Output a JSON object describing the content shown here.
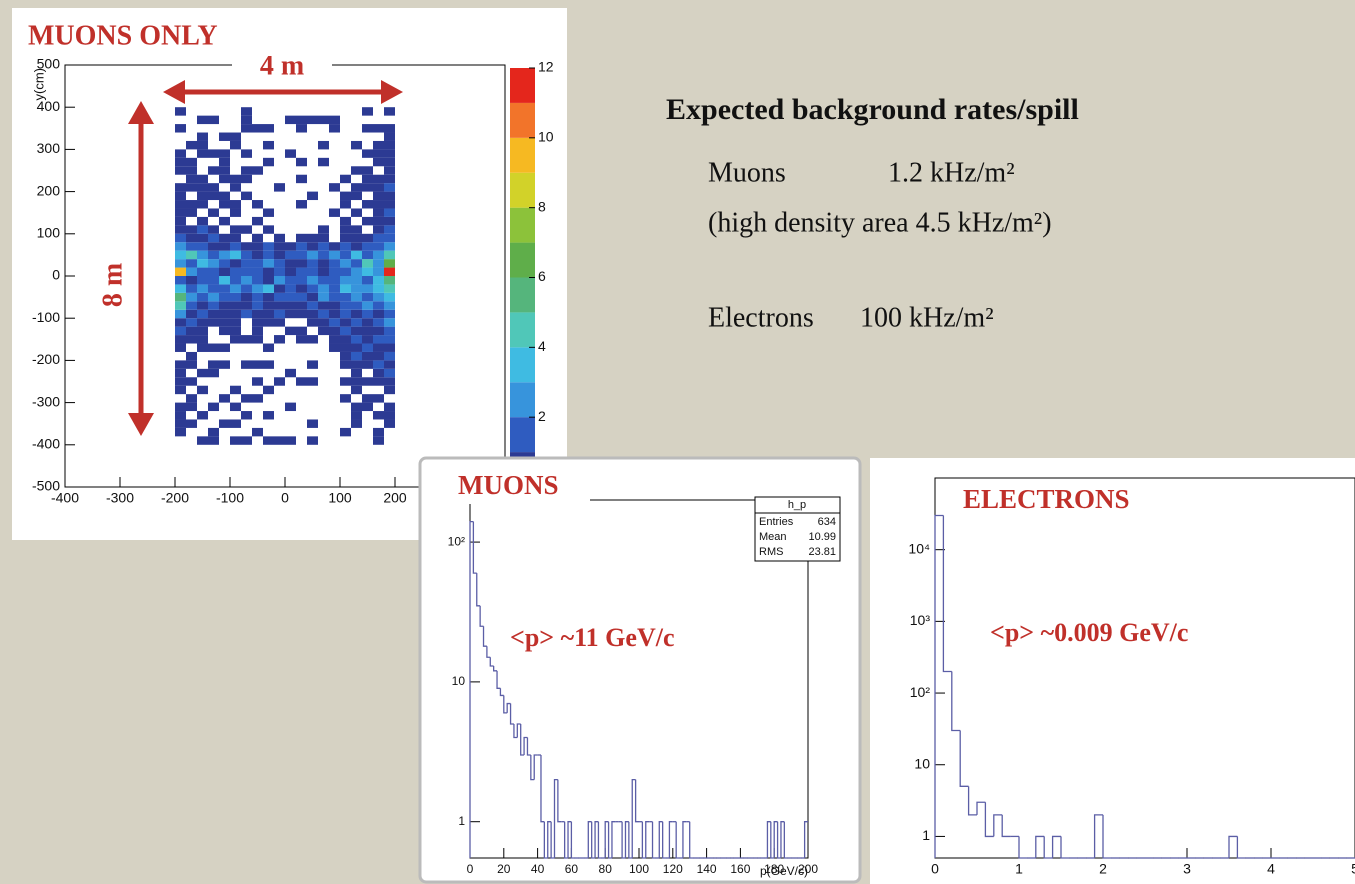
{
  "slide_text": {
    "heading": "Expected background rates/spill",
    "muons_label": "Muons",
    "muons_rate": "1.2 kHz/m²",
    "muons_note": "(high density area 4.5 kHz/m²)",
    "electrons_label": "Electrons",
    "electrons_rate": "100 kHz/m²"
  },
  "chart_data": [
    {
      "type": "heatmap",
      "title": "MUONS ONLY",
      "y_label": "y(cm)",
      "annotations": [
        "4 m",
        "8 m"
      ],
      "xlim": [
        -400,
        400
      ],
      "xticks": [
        -400,
        -300,
        -200,
        -100,
        0,
        100,
        200
      ],
      "ylim": [
        -500,
        500
      ],
      "yticks": [
        -500,
        -400,
        -300,
        -200,
        -100,
        0,
        100,
        200,
        300,
        400,
        500
      ],
      "zlim": [
        0,
        12
      ],
      "zticks": [
        2,
        4,
        6,
        8,
        10,
        12
      ],
      "palette": [
        "#2c3a93",
        "#2f5cc0",
        "#3794dc",
        "#3fbbe2",
        "#50c7b8",
        "#55b57c",
        "#5fae4a",
        "#8cc23a",
        "#d2d229",
        "#f6b922",
        "#f2742a",
        "#e4261c"
      ],
      "xbins": [
        -200,
        -180,
        -160,
        -140,
        -120,
        -100,
        -80,
        -60,
        -40,
        -20,
        0,
        20,
        40,
        60,
        80,
        100,
        120,
        140,
        160,
        180,
        200
      ],
      "ybins": [
        -400,
        -380,
        -360,
        -340,
        -320,
        -300,
        -280,
        -260,
        -240,
        -220,
        -200,
        -180,
        -160,
        -140,
        -120,
        -100,
        -80,
        -60,
        -40,
        -20,
        0,
        20,
        40,
        60,
        80,
        100,
        120,
        140,
        160,
        180,
        200,
        220,
        240,
        260,
        280,
        300,
        320,
        340,
        360,
        380,
        400
      ],
      "values": [
        [
          0,
          0,
          1,
          1,
          0,
          1,
          1,
          0,
          1,
          1,
          1,
          0,
          1,
          0,
          0,
          0,
          0,
          0,
          1,
          0
        ],
        [
          1,
          0,
          0,
          1,
          0,
          0,
          0,
          1,
          0,
          0,
          0,
          0,
          0,
          0,
          0,
          1,
          0,
          0,
          1,
          0
        ],
        [
          1,
          1,
          0,
          0,
          1,
          1,
          0,
          0,
          0,
          0,
          0,
          0,
          1,
          0,
          0,
          0,
          1,
          0,
          0,
          1
        ],
        [
          1,
          0,
          1,
          0,
          0,
          0,
          1,
          0,
          1,
          0,
          0,
          0,
          0,
          0,
          0,
          0,
          1,
          0,
          1,
          1
        ],
        [
          1,
          1,
          0,
          1,
          0,
          1,
          0,
          0,
          0,
          0,
          1,
          0,
          0,
          0,
          0,
          0,
          1,
          1,
          0,
          1
        ],
        [
          0,
          1,
          0,
          0,
          1,
          0,
          1,
          1,
          0,
          0,
          0,
          0,
          0,
          0,
          0,
          1,
          0,
          1,
          1,
          0
        ],
        [
          1,
          0,
          1,
          0,
          0,
          1,
          0,
          0,
          1,
          0,
          0,
          0,
          0,
          0,
          0,
          0,
          1,
          0,
          0,
          1
        ],
        [
          1,
          1,
          0,
          0,
          0,
          0,
          0,
          1,
          0,
          1,
          0,
          1,
          1,
          0,
          0,
          1,
          1,
          1,
          1,
          1
        ],
        [
          1,
          0,
          1,
          1,
          0,
          0,
          0,
          0,
          0,
          0,
          1,
          0,
          0,
          0,
          0,
          0,
          1,
          0,
          1,
          2
        ],
        [
          1,
          1,
          0,
          1,
          1,
          0,
          1,
          1,
          1,
          0,
          0,
          0,
          1,
          0,
          0,
          1,
          1,
          1,
          2,
          1
        ],
        [
          0,
          1,
          0,
          0,
          0,
          0,
          0,
          0,
          0,
          0,
          0,
          0,
          0,
          0,
          0,
          1,
          2,
          1,
          1,
          2
        ],
        [
          1,
          0,
          1,
          1,
          1,
          0,
          0,
          0,
          1,
          0,
          0,
          0,
          0,
          0,
          1,
          1,
          1,
          2,
          1,
          1
        ],
        [
          1,
          1,
          1,
          0,
          0,
          1,
          1,
          1,
          0,
          1,
          0,
          1,
          1,
          0,
          1,
          1,
          2,
          1,
          2,
          2
        ],
        [
          2,
          1,
          1,
          0,
          1,
          1,
          0,
          1,
          0,
          0,
          1,
          1,
          0,
          1,
          1,
          2,
          1,
          1,
          1,
          2
        ],
        [
          1,
          2,
          1,
          1,
          1,
          1,
          0,
          1,
          1,
          1,
          0,
          0,
          1,
          1,
          2,
          1,
          2,
          1,
          2,
          3
        ],
        [
          3,
          1,
          2,
          1,
          1,
          1,
          2,
          1,
          1,
          2,
          1,
          1,
          1,
          2,
          1,
          2,
          1,
          2,
          1,
          2
        ],
        [
          5,
          2,
          1,
          2,
          1,
          1,
          1,
          2,
          1,
          1,
          1,
          1,
          2,
          1,
          1,
          2,
          2,
          3,
          2,
          3
        ],
        [
          6,
          3,
          2,
          3,
          2,
          2,
          1,
          2,
          1,
          2,
          2,
          2,
          1,
          3,
          2,
          2,
          3,
          2,
          3,
          4
        ],
        [
          4,
          2,
          3,
          2,
          2,
          3,
          2,
          3,
          4,
          1,
          2,
          1,
          2,
          3,
          2,
          4,
          3,
          3,
          4,
          5
        ],
        [
          2,
          1,
          2,
          2,
          4,
          2,
          3,
          2,
          1,
          3,
          2,
          2,
          3,
          2,
          2,
          3,
          3,
          2,
          4,
          6
        ],
        [
          10,
          3,
          2,
          2,
          1,
          2,
          2,
          2,
          1,
          2,
          1,
          2,
          2,
          1,
          2,
          2,
          3,
          4,
          3,
          12
        ],
        [
          3,
          2,
          4,
          3,
          2,
          1,
          2,
          2,
          3,
          2,
          1,
          1,
          2,
          1,
          2,
          3,
          2,
          5,
          3,
          7
        ],
        [
          4,
          5,
          3,
          2,
          3,
          4,
          2,
          1,
          2,
          1,
          2,
          2,
          3,
          2,
          3,
          2,
          4,
          2,
          3,
          5
        ],
        [
          3,
          2,
          2,
          1,
          1,
          2,
          1,
          1,
          2,
          1,
          1,
          2,
          1,
          2,
          1,
          2,
          1,
          2,
          2,
          3
        ],
        [
          2,
          1,
          1,
          2,
          1,
          1,
          0,
          1,
          0,
          1,
          0,
          1,
          1,
          1,
          0,
          1,
          1,
          1,
          2,
          2
        ],
        [
          1,
          1,
          2,
          1,
          0,
          1,
          1,
          0,
          1,
          0,
          0,
          0,
          0,
          1,
          0,
          1,
          1,
          0,
          1,
          2
        ],
        [
          1,
          0,
          1,
          0,
          1,
          0,
          0,
          1,
          0,
          0,
          0,
          0,
          0,
          0,
          0,
          1,
          0,
          1,
          1,
          1
        ],
        [
          1,
          1,
          0,
          1,
          0,
          1,
          0,
          0,
          1,
          0,
          0,
          0,
          0,
          0,
          1,
          0,
          1,
          0,
          1,
          2
        ],
        [
          1,
          1,
          1,
          0,
          1,
          1,
          0,
          1,
          0,
          0,
          0,
          1,
          0,
          0,
          0,
          1,
          0,
          1,
          1,
          1
        ],
        [
          1,
          0,
          1,
          1,
          1,
          0,
          1,
          0,
          0,
          0,
          0,
          0,
          1,
          0,
          0,
          1,
          1,
          0,
          1,
          1
        ],
        [
          1,
          1,
          1,
          1,
          0,
          1,
          0,
          0,
          0,
          1,
          0,
          0,
          0,
          0,
          1,
          0,
          1,
          1,
          1,
          2
        ],
        [
          0,
          1,
          1,
          0,
          1,
          1,
          1,
          0,
          0,
          0,
          0,
          1,
          0,
          0,
          0,
          1,
          0,
          1,
          1,
          1
        ],
        [
          1,
          1,
          0,
          1,
          1,
          0,
          1,
          1,
          0,
          0,
          0,
          0,
          0,
          0,
          0,
          0,
          1,
          1,
          0,
          1
        ],
        [
          1,
          1,
          0,
          0,
          1,
          0,
          0,
          0,
          1,
          0,
          0,
          1,
          0,
          1,
          0,
          0,
          0,
          0,
          1,
          1
        ],
        [
          1,
          0,
          1,
          1,
          1,
          0,
          1,
          0,
          0,
          0,
          1,
          0,
          0,
          0,
          0,
          0,
          0,
          1,
          1,
          1
        ],
        [
          0,
          1,
          1,
          0,
          0,
          1,
          0,
          0,
          1,
          0,
          0,
          0,
          0,
          1,
          0,
          0,
          1,
          0,
          1,
          1
        ],
        [
          0,
          0,
          1,
          0,
          1,
          1,
          0,
          0,
          0,
          0,
          0,
          0,
          0,
          0,
          0,
          0,
          0,
          0,
          0,
          1
        ],
        [
          1,
          0,
          0,
          0,
          0,
          0,
          1,
          1,
          1,
          0,
          0,
          1,
          0,
          0,
          1,
          0,
          0,
          1,
          1,
          1
        ],
        [
          0,
          0,
          1,
          1,
          0,
          0,
          1,
          0,
          0,
          0,
          1,
          1,
          1,
          1,
          1,
          0,
          0,
          0,
          0,
          0
        ],
        [
          1,
          0,
          0,
          0,
          0,
          0,
          1,
          0,
          0,
          0,
          0,
          0,
          0,
          0,
          0,
          0,
          0,
          1,
          0,
          1
        ]
      ]
    },
    {
      "type": "histogram",
      "title": "MUONS",
      "x_label": "p(GeV/c)",
      "annotation": "<p> ~11 GeV/c",
      "color": "#5b5ea6",
      "log_y": true,
      "stats": {
        "name": "h_p",
        "rows": [
          {
            "label": "Entries",
            "value": 634
          },
          {
            "label": "Mean",
            "value": 10.99
          },
          {
            "label": "RMS",
            "value": 23.81
          }
        ]
      },
      "xlim": [
        0,
        200
      ],
      "xticks": [
        0,
        20,
        40,
        60,
        80,
        100,
        120,
        140,
        160,
        180,
        200
      ],
      "ylim": [
        0.55,
        200
      ],
      "yticks": [
        1,
        10,
        {
          "value": 100,
          "label": "10²"
        }
      ],
      "bins": [
        0,
        2,
        4,
        6,
        8,
        10,
        12,
        14,
        16,
        18,
        20,
        22,
        24,
        26,
        28,
        30,
        32,
        34,
        36,
        38,
        40,
        42,
        44,
        46,
        48,
        50,
        52,
        54,
        56,
        58,
        60,
        62,
        64,
        66,
        68,
        70,
        72,
        74,
        76,
        78,
        80,
        82,
        84,
        86,
        88,
        90,
        92,
        94,
        96,
        98,
        100,
        102,
        104,
        106,
        108,
        110,
        112,
        114,
        116,
        118,
        120,
        122,
        124,
        126,
        128,
        130,
        132,
        134,
        136,
        138,
        140,
        142,
        144,
        146,
        148,
        150,
        152,
        154,
        156,
        158,
        160,
        162,
        164,
        166,
        168,
        170,
        172,
        174,
        176,
        178,
        180,
        182,
        184,
        186,
        188,
        190,
        192,
        194,
        196,
        198,
        200
      ],
      "values": [
        140,
        60,
        35,
        25,
        18,
        15,
        13,
        12,
        9,
        8,
        6,
        7,
        5,
        4,
        5,
        3,
        4,
        3,
        2,
        3,
        3,
        1,
        0,
        1,
        0,
        2,
        1,
        1,
        0,
        1,
        0,
        0,
        0,
        0,
        0,
        1,
        0,
        1,
        0,
        0,
        1,
        0,
        1,
        1,
        1,
        0,
        1,
        0,
        2,
        1,
        1,
        0,
        1,
        1,
        0,
        0,
        1,
        0,
        0,
        1,
        1,
        0,
        0,
        1,
        1,
        0,
        0,
        0,
        0,
        0,
        0,
        0,
        0,
        0,
        0,
        0,
        0,
        0,
        0,
        0,
        0,
        0,
        0,
        0,
        0,
        0,
        0,
        0,
        1,
        0,
        1,
        0,
        1,
        0,
        0,
        0,
        0,
        0,
        0,
        1
      ]
    },
    {
      "type": "histogram",
      "title": "ELECTRONS",
      "annotation": "<p> ~0.009 GeV/c",
      "color": "#5b5ea6",
      "log_y": true,
      "xlim": [
        0,
        5
      ],
      "xticks": [
        0,
        1,
        2,
        3,
        4,
        5
      ],
      "ylim": [
        0.5,
        100000
      ],
      "yticks": [
        1,
        10,
        {
          "value": 100,
          "label": "10²"
        },
        {
          "value": 1000,
          "label": "10³"
        },
        {
          "value": 10000,
          "label": "10⁴"
        }
      ],
      "bins": [
        0,
        0.1,
        0.2,
        0.3,
        0.4,
        0.5,
        0.6,
        0.7,
        0.8,
        0.9,
        1,
        1.1,
        1.2,
        1.3,
        1.4,
        1.5,
        1.6,
        1.7,
        1.8,
        1.9,
        2,
        2.1,
        2.2,
        2.3,
        2.4,
        2.5,
        2.6,
        2.7,
        2.8,
        2.9,
        3,
        3.1,
        3.2,
        3.3,
        3.4,
        3.5,
        3.6,
        3.7,
        3.8,
        3.9,
        4,
        4.1,
        4.2,
        4.3,
        4.4,
        4.5,
        4.6,
        4.7,
        4.8,
        4.9,
        5
      ],
      "values": [
        30000,
        200,
        30,
        5,
        2,
        3,
        1,
        2,
        1,
        1,
        0,
        0,
        1,
        0,
        1,
        0,
        0,
        0,
        0,
        2,
        0,
        0,
        0,
        0,
        0,
        0,
        0,
        0,
        0,
        0,
        0,
        0,
        0,
        0,
        0,
        1,
        0,
        0,
        0,
        0,
        0,
        0,
        0,
        0,
        0,
        0,
        0,
        0,
        0,
        0
      ]
    }
  ]
}
